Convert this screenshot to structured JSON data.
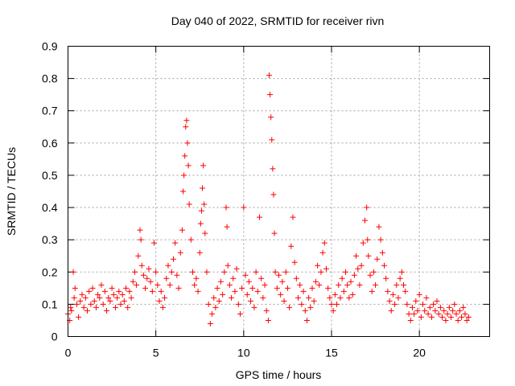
{
  "chart_data": {
    "type": "scatter",
    "title": "Day 040 of 2022, SRMTID for receiver rivn",
    "xlabel": "GPS time / hours",
    "ylabel": "SRMTID / TECUs",
    "xlim": [
      0,
      24
    ],
    "ylim": [
      0,
      0.9
    ],
    "xticks": [
      0,
      5,
      10,
      15,
      20
    ],
    "xtick_labels": [
      "0",
      "5",
      "10",
      "15",
      "20"
    ],
    "yticks": [
      0,
      0.1,
      0.2,
      0.3,
      0.4,
      0.5,
      0.6,
      0.7,
      0.8,
      0.9
    ],
    "ytick_labels": [
      "0",
      "0.1",
      "0.2",
      "0.3",
      "0.4",
      "0.5",
      "0.6",
      "0.7",
      "0.8",
      "0.9"
    ],
    "grid": true,
    "marker": "+",
    "color": "#ff0000",
    "series": [
      {
        "name": "SRMTID",
        "points": [
          [
            0.0,
            0.07
          ],
          [
            0.1,
            0.05
          ],
          [
            0.15,
            0.09
          ],
          [
            0.2,
            0.08
          ],
          [
            0.3,
            0.2
          ],
          [
            0.35,
            0.12
          ],
          [
            0.4,
            0.15
          ],
          [
            0.5,
            0.1
          ],
          [
            0.6,
            0.06
          ],
          [
            0.7,
            0.11
          ],
          [
            0.8,
            0.13
          ],
          [
            0.9,
            0.09
          ],
          [
            1.0,
            0.12
          ],
          [
            1.1,
            0.08
          ],
          [
            1.2,
            0.14
          ],
          [
            1.3,
            0.1
          ],
          [
            1.4,
            0.15
          ],
          [
            1.5,
            0.11
          ],
          [
            1.6,
            0.09
          ],
          [
            1.7,
            0.13
          ],
          [
            1.8,
            0.12
          ],
          [
            1.9,
            0.16
          ],
          [
            2.0,
            0.1
          ],
          [
            2.1,
            0.14
          ],
          [
            2.2,
            0.08
          ],
          [
            2.3,
            0.12
          ],
          [
            2.4,
            0.11
          ],
          [
            2.5,
            0.15
          ],
          [
            2.6,
            0.13
          ],
          [
            2.7,
            0.09
          ],
          [
            2.8,
            0.12
          ],
          [
            2.9,
            0.14
          ],
          [
            3.0,
            0.1
          ],
          [
            3.1,
            0.13
          ],
          [
            3.2,
            0.11
          ],
          [
            3.3,
            0.15
          ],
          [
            3.4,
            0.09
          ],
          [
            3.5,
            0.14
          ],
          [
            3.6,
            0.12
          ],
          [
            3.7,
            0.17
          ],
          [
            3.8,
            0.2
          ],
          [
            3.9,
            0.16
          ],
          [
            4.0,
            0.25
          ],
          [
            4.1,
            0.33
          ],
          [
            4.15,
            0.3
          ],
          [
            4.2,
            0.22
          ],
          [
            4.3,
            0.19
          ],
          [
            4.4,
            0.15
          ],
          [
            4.5,
            0.18
          ],
          [
            4.6,
            0.21
          ],
          [
            4.7,
            0.17
          ],
          [
            4.8,
            0.14
          ],
          [
            4.9,
            0.29
          ],
          [
            5.0,
            0.2
          ],
          [
            5.1,
            0.16
          ],
          [
            5.2,
            0.11
          ],
          [
            5.3,
            0.14
          ],
          [
            5.4,
            0.09
          ],
          [
            5.5,
            0.12
          ],
          [
            5.6,
            0.18
          ],
          [
            5.7,
            0.22
          ],
          [
            5.8,
            0.16
          ],
          [
            5.9,
            0.2
          ],
          [
            6.0,
            0.24
          ],
          [
            6.1,
            0.29
          ],
          [
            6.2,
            0.19
          ],
          [
            6.3,
            0.15
          ],
          [
            6.4,
            0.26
          ],
          [
            6.5,
            0.33
          ],
          [
            6.55,
            0.45
          ],
          [
            6.6,
            0.5
          ],
          [
            6.65,
            0.56
          ],
          [
            6.7,
            0.65
          ],
          [
            6.75,
            0.67
          ],
          [
            6.8,
            0.6
          ],
          [
            6.85,
            0.53
          ],
          [
            6.9,
            0.41
          ],
          [
            7.0,
            0.3
          ],
          [
            7.1,
            0.2
          ],
          [
            7.2,
            0.16
          ],
          [
            7.3,
            0.18
          ],
          [
            7.4,
            0.14
          ],
          [
            7.5,
            0.26
          ],
          [
            7.55,
            0.35
          ],
          [
            7.6,
            0.39
          ],
          [
            7.65,
            0.46
          ],
          [
            7.7,
            0.53
          ],
          [
            7.75,
            0.41
          ],
          [
            7.8,
            0.32
          ],
          [
            7.9,
            0.2
          ],
          [
            8.0,
            0.1
          ],
          [
            8.1,
            0.04
          ],
          [
            8.2,
            0.07
          ],
          [
            8.3,
            0.12
          ],
          [
            8.4,
            0.09
          ],
          [
            8.5,
            0.15
          ],
          [
            8.6,
            0.11
          ],
          [
            8.7,
            0.17
          ],
          [
            8.8,
            0.13
          ],
          [
            8.9,
            0.2
          ],
          [
            9.0,
            0.4
          ],
          [
            9.05,
            0.34
          ],
          [
            9.1,
            0.22
          ],
          [
            9.2,
            0.16
          ],
          [
            9.3,
            0.12
          ],
          [
            9.4,
            0.18
          ],
          [
            9.5,
            0.14
          ],
          [
            9.6,
            0.21
          ],
          [
            9.7,
            0.1
          ],
          [
            9.8,
            0.07
          ],
          [
            9.9,
            0.15
          ],
          [
            10.0,
            0.4
          ],
          [
            10.1,
            0.19
          ],
          [
            10.2,
            0.13
          ],
          [
            10.3,
            0.17
          ],
          [
            10.4,
            0.11
          ],
          [
            10.5,
            0.15
          ],
          [
            10.6,
            0.09
          ],
          [
            10.7,
            0.2
          ],
          [
            10.8,
            0.14
          ],
          [
            10.9,
            0.37
          ],
          [
            11.0,
            0.18
          ],
          [
            11.1,
            0.12
          ],
          [
            11.2,
            0.16
          ],
          [
            11.3,
            0.08
          ],
          [
            11.4,
            0.05
          ],
          [
            11.45,
            0.81
          ],
          [
            11.5,
            0.75
          ],
          [
            11.55,
            0.68
          ],
          [
            11.6,
            0.61
          ],
          [
            11.65,
            0.52
          ],
          [
            11.7,
            0.44
          ],
          [
            11.75,
            0.32
          ],
          [
            11.8,
            0.2
          ],
          [
            11.9,
            0.15
          ],
          [
            12.0,
            0.19
          ],
          [
            12.1,
            0.13
          ],
          [
            12.2,
            0.17
          ],
          [
            12.3,
            0.11
          ],
          [
            12.4,
            0.2
          ],
          [
            12.5,
            0.15
          ],
          [
            12.6,
            0.09
          ],
          [
            12.7,
            0.28
          ],
          [
            12.8,
            0.37
          ],
          [
            12.9,
            0.23
          ],
          [
            13.0,
            0.18
          ],
          [
            13.1,
            0.12
          ],
          [
            13.2,
            0.16
          ],
          [
            13.3,
            0.1
          ],
          [
            13.4,
            0.14
          ],
          [
            13.5,
            0.08
          ],
          [
            13.6,
            0.05
          ],
          [
            13.7,
            0.12
          ],
          [
            13.8,
            0.09
          ],
          [
            13.9,
            0.15
          ],
          [
            14.0,
            0.11
          ],
          [
            14.1,
            0.17
          ],
          [
            14.2,
            0.22
          ],
          [
            14.3,
            0.16
          ],
          [
            14.4,
            0.2
          ],
          [
            14.5,
            0.26
          ],
          [
            14.6,
            0.29
          ],
          [
            14.7,
            0.21
          ],
          [
            14.8,
            0.15
          ],
          [
            14.9,
            0.12
          ],
          [
            15.0,
            0.1
          ],
          [
            15.1,
            0.08
          ],
          [
            15.2,
            0.13
          ],
          [
            15.3,
            0.1
          ],
          [
            15.4,
            0.16
          ],
          [
            15.5,
            0.12
          ],
          [
            15.6,
            0.18
          ],
          [
            15.7,
            0.14
          ],
          [
            15.8,
            0.2
          ],
          [
            15.9,
            0.16
          ],
          [
            16.0,
            0.12
          ],
          [
            16.1,
            0.17
          ],
          [
            16.2,
            0.13
          ],
          [
            16.3,
            0.19
          ],
          [
            16.4,
            0.25
          ],
          [
            16.5,
            0.21
          ],
          [
            16.6,
            0.16
          ],
          [
            16.7,
            0.22
          ],
          [
            16.8,
            0.29
          ],
          [
            16.9,
            0.36
          ],
          [
            17.0,
            0.4
          ],
          [
            17.05,
            0.3
          ],
          [
            17.1,
            0.25
          ],
          [
            17.2,
            0.19
          ],
          [
            17.3,
            0.14
          ],
          [
            17.4,
            0.2
          ],
          [
            17.5,
            0.16
          ],
          [
            17.6,
            0.24
          ],
          [
            17.7,
            0.34
          ],
          [
            17.8,
            0.3
          ],
          [
            17.9,
            0.26
          ],
          [
            18.0,
            0.22
          ],
          [
            18.1,
            0.18
          ],
          [
            18.2,
            0.14
          ],
          [
            18.3,
            0.11
          ],
          [
            18.4,
            0.08
          ],
          [
            18.5,
            0.13
          ],
          [
            18.6,
            0.1
          ],
          [
            18.7,
            0.16
          ],
          [
            18.8,
            0.12
          ],
          [
            18.9,
            0.18
          ],
          [
            19.0,
            0.2
          ],
          [
            19.1,
            0.16
          ],
          [
            19.2,
            0.14
          ],
          [
            19.3,
            0.1
          ],
          [
            19.4,
            0.07
          ],
          [
            19.5,
            0.05
          ],
          [
            19.6,
            0.09
          ],
          [
            19.7,
            0.07
          ],
          [
            19.8,
            0.11
          ],
          [
            19.9,
            0.08
          ],
          [
            20.0,
            0.13
          ],
          [
            20.1,
            0.06
          ],
          [
            20.2,
            0.1
          ],
          [
            20.3,
            0.08
          ],
          [
            20.4,
            0.12
          ],
          [
            20.5,
            0.07
          ],
          [
            20.6,
            0.09
          ],
          [
            20.7,
            0.06
          ],
          [
            20.8,
            0.1
          ],
          [
            20.9,
            0.08
          ],
          [
            21.0,
            0.11
          ],
          [
            21.1,
            0.07
          ],
          [
            21.2,
            0.09
          ],
          [
            21.3,
            0.06
          ],
          [
            21.4,
            0.08
          ],
          [
            21.5,
            0.05
          ],
          [
            21.6,
            0.07
          ],
          [
            21.7,
            0.09
          ],
          [
            21.8,
            0.06
          ],
          [
            21.9,
            0.08
          ],
          [
            22.0,
            0.1
          ],
          [
            22.1,
            0.07
          ],
          [
            22.2,
            0.05
          ],
          [
            22.3,
            0.08
          ],
          [
            22.4,
            0.06
          ],
          [
            22.5,
            0.09
          ],
          [
            22.6,
            0.07
          ],
          [
            22.7,
            0.05
          ],
          [
            22.8,
            0.06
          ]
        ]
      }
    ]
  }
}
